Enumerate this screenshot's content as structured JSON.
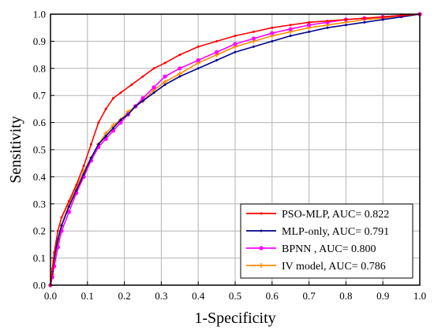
{
  "chart_data": {
    "type": "line",
    "title": "",
    "xlabel": "1-Specificity",
    "ylabel": "Sensitivity",
    "xlim": [
      0,
      1
    ],
    "ylim": [
      0,
      1
    ],
    "xticks": [
      "0.0",
      "0.1",
      "0.2",
      "0.3",
      "0.4",
      "0.5",
      "0.6",
      "0.7",
      "0.8",
      "0.9",
      "1.0"
    ],
    "yticks": [
      "0.0",
      "0.1",
      "0.2",
      "0.3",
      "0.4",
      "0.5",
      "0.6",
      "0.7",
      "0.8",
      "0.9",
      "1.0"
    ],
    "grid": true,
    "legend_position": "bottom-right",
    "series": [
      {
        "label": "PSO-MLP, AUC= 0.822",
        "color": "#ff0000",
        "marker": "dot",
        "x": [
          0.0,
          0.005,
          0.01,
          0.02,
          0.03,
          0.05,
          0.07,
          0.09,
          0.11,
          0.13,
          0.15,
          0.17,
          0.19,
          0.22,
          0.25,
          0.28,
          0.31,
          0.35,
          0.4,
          0.45,
          0.5,
          0.55,
          0.6,
          0.65,
          0.7,
          0.75,
          0.8,
          0.85,
          0.9,
          0.95,
          1.0
        ],
        "y": [
          0.0,
          0.06,
          0.12,
          0.2,
          0.25,
          0.31,
          0.37,
          0.44,
          0.52,
          0.6,
          0.65,
          0.69,
          0.71,
          0.74,
          0.77,
          0.8,
          0.82,
          0.85,
          0.88,
          0.9,
          0.92,
          0.935,
          0.95,
          0.96,
          0.97,
          0.975,
          0.98,
          0.985,
          0.99,
          0.995,
          1.0
        ]
      },
      {
        "label": "MLP-only, AUC= 0.791",
        "color": "#00008b",
        "marker": "dot",
        "x": [
          0.0,
          0.005,
          0.01,
          0.02,
          0.03,
          0.05,
          0.07,
          0.09,
          0.11,
          0.13,
          0.15,
          0.17,
          0.19,
          0.21,
          0.23,
          0.25,
          0.28,
          0.31,
          0.35,
          0.4,
          0.45,
          0.5,
          0.55,
          0.6,
          0.65,
          0.7,
          0.75,
          0.8,
          0.85,
          0.9,
          0.95,
          1.0
        ],
        "y": [
          0.0,
          0.05,
          0.1,
          0.17,
          0.22,
          0.29,
          0.35,
          0.41,
          0.47,
          0.52,
          0.55,
          0.58,
          0.61,
          0.63,
          0.66,
          0.68,
          0.71,
          0.74,
          0.77,
          0.8,
          0.83,
          0.86,
          0.88,
          0.9,
          0.92,
          0.935,
          0.95,
          0.96,
          0.97,
          0.98,
          0.99,
          1.0
        ]
      },
      {
        "label": "BPNN     , AUC= 0.800",
        "color": "#ff00ff",
        "marker": "circle",
        "x": [
          0.0,
          0.005,
          0.01,
          0.02,
          0.03,
          0.05,
          0.07,
          0.09,
          0.11,
          0.13,
          0.15,
          0.17,
          0.19,
          0.21,
          0.23,
          0.25,
          0.28,
          0.31,
          0.35,
          0.4,
          0.45,
          0.5,
          0.55,
          0.6,
          0.65,
          0.7,
          0.75,
          0.8,
          0.85,
          0.9,
          0.95,
          1.0
        ],
        "y": [
          0.0,
          0.03,
          0.07,
          0.14,
          0.2,
          0.27,
          0.34,
          0.4,
          0.46,
          0.51,
          0.54,
          0.57,
          0.6,
          0.63,
          0.66,
          0.69,
          0.73,
          0.77,
          0.8,
          0.83,
          0.86,
          0.89,
          0.91,
          0.93,
          0.945,
          0.96,
          0.97,
          0.98,
          0.985,
          0.99,
          0.995,
          1.0
        ]
      },
      {
        "label": "IV model,  AUC= 0.786",
        "color": "#ff8c00",
        "marker": "plus",
        "x": [
          0.0,
          0.005,
          0.01,
          0.02,
          0.03,
          0.05,
          0.07,
          0.09,
          0.11,
          0.13,
          0.15,
          0.17,
          0.19,
          0.21,
          0.23,
          0.25,
          0.28,
          0.31,
          0.35,
          0.4,
          0.45,
          0.5,
          0.55,
          0.6,
          0.65,
          0.7,
          0.75,
          0.8,
          0.85,
          0.9,
          0.95,
          1.0
        ],
        "y": [
          0.0,
          0.04,
          0.09,
          0.16,
          0.22,
          0.3,
          0.36,
          0.42,
          0.47,
          0.52,
          0.56,
          0.59,
          0.61,
          0.64,
          0.66,
          0.68,
          0.72,
          0.75,
          0.78,
          0.82,
          0.85,
          0.88,
          0.9,
          0.92,
          0.935,
          0.95,
          0.96,
          0.97,
          0.98,
          0.985,
          0.995,
          1.0
        ]
      }
    ]
  }
}
